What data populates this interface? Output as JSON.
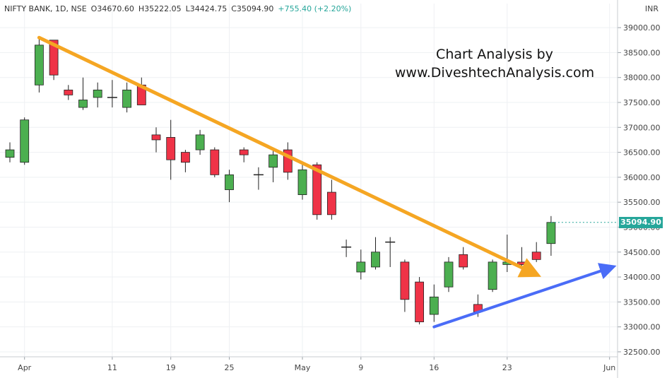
{
  "header": {
    "symbol": "NIFTY BANK, 1D, NSE",
    "open": "O34670.60",
    "high": "H35222.05",
    "low": "L34424.75",
    "close": "C35094.90",
    "change": "+755.40 (+2.20%)"
  },
  "currency": "INR",
  "watermark": {
    "line1": "Chart Analysis by",
    "line2": "www.DiveshtechAnalysis.com"
  },
  "last_price_label": "35094.90",
  "colors": {
    "up": "#4caf50",
    "down": "#ef3347",
    "orange_trend": "#f5a623",
    "blue_trend": "#4a6cf7",
    "last_badge": "#26a69a"
  },
  "chart_data": {
    "type": "candlestick",
    "ylim": [
      32400,
      39200
    ],
    "yticks": [
      32500,
      33000,
      33500,
      34000,
      34500,
      35000,
      35500,
      36000,
      36500,
      37000,
      37500,
      38000,
      38500,
      39000
    ],
    "ytick_labels": [
      "32500.00",
      "33000.00",
      "33500.00",
      "34000.00",
      "34500.00",
      "35000.00",
      "35500.00",
      "36000.00",
      "36500.00",
      "37000.00",
      "37500.00",
      "38000.00",
      "38500.00",
      "39000.00"
    ],
    "xtick_labels": [
      {
        "label": "Apr",
        "index": 1
      },
      {
        "label": "11",
        "index": 7
      },
      {
        "label": "19",
        "index": 11
      },
      {
        "label": "25",
        "index": 15
      },
      {
        "label": "May",
        "index": 20
      },
      {
        "label": "9",
        "index": 24
      },
      {
        "label": "16",
        "index": 29
      },
      {
        "label": "23",
        "index": 34
      },
      {
        "label": "Jun",
        "index": 41
      }
    ],
    "candles": [
      {
        "o": 36400,
        "h": 36700,
        "l": 36300,
        "c": 36550
      },
      {
        "o": 36300,
        "h": 37200,
        "l": 36250,
        "c": 37150
      },
      {
        "o": 37850,
        "h": 38800,
        "l": 37700,
        "c": 38650
      },
      {
        "o": 38750,
        "h": 38750,
        "l": 37950,
        "c": 38050
      },
      {
        "o": 37750,
        "h": 37850,
        "l": 37550,
        "c": 37650
      },
      {
        "o": 37400,
        "h": 38000,
        "l": 37350,
        "c": 37550
      },
      {
        "o": 37600,
        "h": 37900,
        "l": 37400,
        "c": 37750
      },
      {
        "o": 37600,
        "h": 37950,
        "l": 37400,
        "c": 37600
      },
      {
        "o": 37400,
        "h": 37900,
        "l": 37300,
        "c": 37750
      },
      {
        "o": 37850,
        "h": 38000,
        "l": 37450,
        "c": 37450
      },
      {
        "o": 36850,
        "h": 37000,
        "l": 36500,
        "c": 36750
      },
      {
        "o": 36800,
        "h": 37150,
        "l": 35950,
        "c": 36350
      },
      {
        "o": 36500,
        "h": 36550,
        "l": 36100,
        "c": 36300
      },
      {
        "o": 36550,
        "h": 36950,
        "l": 36450,
        "c": 36850
      },
      {
        "o": 36550,
        "h": 36600,
        "l": 36000,
        "c": 36050
      },
      {
        "o": 35750,
        "h": 36150,
        "l": 35500,
        "c": 36050
      },
      {
        "o": 36550,
        "h": 36600,
        "l": 36300,
        "c": 36450
      },
      {
        "o": 36050,
        "h": 36200,
        "l": 35750,
        "c": 36050
      },
      {
        "o": 36200,
        "h": 36550,
        "l": 35900,
        "c": 36450
      },
      {
        "o": 36550,
        "h": 36700,
        "l": 35950,
        "c": 36100
      },
      {
        "o": 35650,
        "h": 36250,
        "l": 35550,
        "c": 36150
      },
      {
        "o": 36250,
        "h": 36300,
        "l": 35150,
        "c": 35250
      },
      {
        "o": 35700,
        "h": 35950,
        "l": 35150,
        "c": 35250
      },
      {
        "o": 34600,
        "h": 34750,
        "l": 34400,
        "c": 34600
      },
      {
        "o": 34100,
        "h": 34550,
        "l": 33950,
        "c": 34300
      },
      {
        "o": 34200,
        "h": 34800,
        "l": 34150,
        "c": 34500
      },
      {
        "o": 34700,
        "h": 34800,
        "l": 34200,
        "c": 34700
      },
      {
        "o": 34300,
        "h": 34350,
        "l": 33300,
        "c": 33550
      },
      {
        "o": 33900,
        "h": 34000,
        "l": 33050,
        "c": 33100
      },
      {
        "o": 33250,
        "h": 33850,
        "l": 33100,
        "c": 33600
      },
      {
        "o": 33800,
        "h": 34400,
        "l": 33700,
        "c": 34300
      },
      {
        "o": 34450,
        "h": 34600,
        "l": 34150,
        "c": 34200
      },
      {
        "o": 33450,
        "h": 33650,
        "l": 33200,
        "c": 33300
      },
      {
        "o": 33750,
        "h": 34350,
        "l": 33700,
        "c": 34300
      },
      {
        "o": 34250,
        "h": 34850,
        "l": 34100,
        "c": 34300
      },
      {
        "o": 34300,
        "h": 34600,
        "l": 34200,
        "c": 34250
      },
      {
        "o": 34500,
        "h": 34700,
        "l": 34300,
        "c": 34350
      },
      {
        "o": 34670.6,
        "h": 35222.05,
        "l": 34424.75,
        "c": 35094.9
      }
    ],
    "trendlines": [
      {
        "name": "orange",
        "from": {
          "index": 2,
          "price": 38800
        },
        "to": {
          "index": 36,
          "price": 34050
        }
      },
      {
        "name": "blue",
        "from": {
          "index": 29,
          "price": 33000
        },
        "to": {
          "index": 41.2,
          "price": 34200
        }
      }
    ],
    "grid": true
  }
}
